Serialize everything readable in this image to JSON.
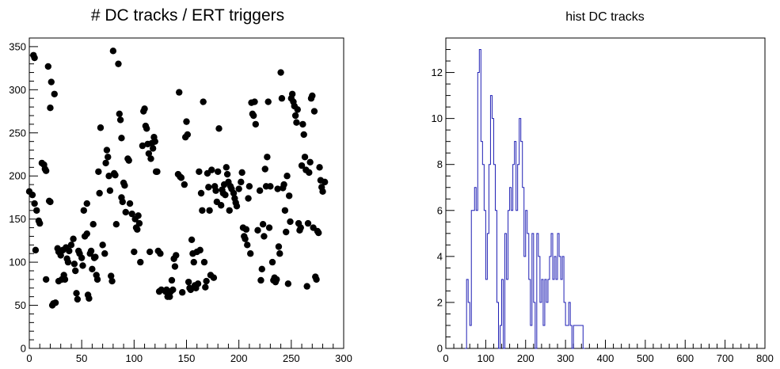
{
  "chart_data": [
    {
      "type": "scatter",
      "title": "# DC tracks / ERT triggers",
      "xlim": [
        0,
        300
      ],
      "ylim": [
        0,
        360
      ],
      "xticks": [
        "0",
        "50",
        "100",
        "150",
        "200",
        "250",
        "300"
      ],
      "yticks": [
        "0",
        "50",
        "100",
        "150",
        "200",
        "250",
        "300",
        "350"
      ],
      "marker_color": "#000000",
      "points": [
        [
          4,
          340
        ],
        [
          5,
          337
        ],
        [
          18,
          327
        ],
        [
          21,
          309
        ],
        [
          20,
          279
        ],
        [
          24,
          295
        ],
        [
          0,
          182
        ],
        [
          3,
          178
        ],
        [
          5,
          168
        ],
        [
          7,
          160
        ],
        [
          9,
          148
        ],
        [
          10,
          145
        ],
        [
          6,
          114
        ],
        [
          12,
          215
        ],
        [
          14,
          213
        ],
        [
          15,
          208
        ],
        [
          16,
          206
        ],
        [
          19,
          171
        ],
        [
          20,
          170
        ],
        [
          16,
          80
        ],
        [
          22,
          50
        ],
        [
          23,
          52
        ],
        [
          25,
          53
        ],
        [
          27,
          116
        ],
        [
          28,
          112
        ],
        [
          30,
          108
        ],
        [
          32,
          114
        ],
        [
          35,
          117
        ],
        [
          36,
          104
        ],
        [
          37,
          100
        ],
        [
          33,
          85
        ],
        [
          34,
          80
        ],
        [
          28,
          78
        ],
        [
          31,
          80
        ],
        [
          38,
          113
        ],
        [
          40,
          120
        ],
        [
          42,
          127
        ],
        [
          43,
          98
        ],
        [
          44,
          90
        ],
        [
          45,
          64
        ],
        [
          46,
          57
        ],
        [
          47,
          113
        ],
        [
          48,
          110
        ],
        [
          50,
          105
        ],
        [
          51,
          96
        ],
        [
          52,
          160
        ],
        [
          53,
          130
        ],
        [
          55,
          133
        ],
        [
          55,
          168
        ],
        [
          56,
          62
        ],
        [
          57,
          58
        ],
        [
          58,
          110
        ],
        [
          59,
          113
        ],
        [
          60,
          92
        ],
        [
          61,
          144
        ],
        [
          62,
          105
        ],
        [
          63,
          106
        ],
        [
          64,
          85
        ],
        [
          65,
          80
        ],
        [
          66,
          205
        ],
        [
          67,
          180
        ],
        [
          68,
          256
        ],
        [
          70,
          120
        ],
        [
          72,
          110
        ],
        [
          73,
          215
        ],
        [
          74,
          230
        ],
        [
          75,
          222
        ],
        [
          76,
          200
        ],
        [
          77,
          183
        ],
        [
          78,
          84
        ],
        [
          79,
          78
        ],
        [
          80,
          345
        ],
        [
          81,
          203
        ],
        [
          82,
          201
        ],
        [
          83,
          144
        ],
        [
          85,
          330
        ],
        [
          86,
          272
        ],
        [
          87,
          265
        ],
        [
          88,
          244
        ],
        [
          88,
          175
        ],
        [
          89,
          170
        ],
        [
          90,
          192
        ],
        [
          91,
          189
        ],
        [
          92,
          158
        ],
        [
          94,
          220
        ],
        [
          95,
          218
        ],
        [
          96,
          168
        ],
        [
          98,
          156
        ],
        [
          100,
          112
        ],
        [
          101,
          150
        ],
        [
          102,
          140
        ],
        [
          103,
          138
        ],
        [
          104,
          154
        ],
        [
          105,
          145
        ],
        [
          106,
          100
        ],
        [
          108,
          235
        ],
        [
          109,
          275
        ],
        [
          110,
          278
        ],
        [
          111,
          258
        ],
        [
          112,
          255
        ],
        [
          113,
          237
        ],
        [
          114,
          226
        ],
        [
          115,
          112
        ],
        [
          116,
          220
        ],
        [
          117,
          238
        ],
        [
          118,
          232
        ],
        [
          119,
          245
        ],
        [
          120,
          240
        ],
        [
          121,
          205
        ],
        [
          122,
          205
        ],
        [
          123,
          113
        ],
        [
          124,
          66
        ],
        [
          125,
          110
        ],
        [
          126,
          68
        ],
        [
          130,
          66
        ],
        [
          131,
          68
        ],
        [
          132,
          60
        ],
        [
          133,
          63
        ],
        [
          134,
          60
        ],
        [
          135,
          66
        ],
        [
          136,
          79
        ],
        [
          137,
          68
        ],
        [
          138,
          104
        ],
        [
          139,
          95
        ],
        [
          140,
          108
        ],
        [
          142,
          202
        ],
        [
          143,
          297
        ],
        [
          144,
          199
        ],
        [
          145,
          198
        ],
        [
          146,
          65
        ],
        [
          148,
          190
        ],
        [
          149,
          245
        ],
        [
          150,
          263
        ],
        [
          151,
          248
        ],
        [
          152,
          77
        ],
        [
          153,
          70
        ],
        [
          154,
          68
        ],
        [
          155,
          126
        ],
        [
          156,
          110
        ],
        [
          157,
          100
        ],
        [
          158,
          73
        ],
        [
          159,
          70
        ],
        [
          160,
          112
        ],
        [
          161,
          75
        ],
        [
          162,
          205
        ],
        [
          163,
          114
        ],
        [
          164,
          180
        ],
        [
          165,
          160
        ],
        [
          166,
          286
        ],
        [
          167,
          100
        ],
        [
          168,
          71
        ],
        [
          169,
          78
        ],
        [
          170,
          203
        ],
        [
          171,
          187
        ],
        [
          172,
          160
        ],
        [
          173,
          85
        ],
        [
          174,
          207
        ],
        [
          176,
          82
        ],
        [
          177,
          188
        ],
        [
          178,
          183
        ],
        [
          179,
          170
        ],
        [
          180,
          205
        ],
        [
          181,
          255
        ],
        [
          183,
          166
        ],
        [
          184,
          184
        ],
        [
          185,
          180
        ],
        [
          186,
          190
        ],
        [
          187,
          178
        ],
        [
          188,
          210
        ],
        [
          189,
          202
        ],
        [
          190,
          193
        ],
        [
          191,
          160
        ],
        [
          192,
          188
        ],
        [
          193,
          185
        ],
        [
          195,
          180
        ],
        [
          196,
          174
        ],
        [
          197,
          169
        ],
        [
          198,
          165
        ],
        [
          200,
          185
        ],
        [
          202,
          193
        ],
        [
          203,
          204
        ],
        [
          204,
          140
        ],
        [
          205,
          130
        ],
        [
          206,
          127
        ],
        [
          207,
          138
        ],
        [
          208,
          120
        ],
        [
          209,
          174
        ],
        [
          210,
          188
        ],
        [
          211,
          110
        ],
        [
          212,
          285
        ],
        [
          213,
          272
        ],
        [
          214,
          270
        ],
        [
          215,
          286
        ],
        [
          216,
          260
        ],
        [
          218,
          137
        ],
        [
          220,
          183
        ],
        [
          221,
          79
        ],
        [
          222,
          92
        ],
        [
          223,
          144
        ],
        [
          224,
          130
        ],
        [
          225,
          208
        ],
        [
          226,
          188
        ],
        [
          227,
          222
        ],
        [
          228,
          286
        ],
        [
          229,
          140
        ],
        [
          230,
          188
        ],
        [
          232,
          100
        ],
        [
          233,
          79
        ],
        [
          234,
          82
        ],
        [
          235,
          77
        ],
        [
          236,
          80
        ],
        [
          237,
          185
        ],
        [
          238,
          118
        ],
        [
          239,
          110
        ],
        [
          240,
          320
        ],
        [
          241,
          290
        ],
        [
          242,
          186
        ],
        [
          243,
          190
        ],
        [
          244,
          160
        ],
        [
          245,
          135
        ],
        [
          246,
          200
        ],
        [
          247,
          75
        ],
        [
          248,
          177
        ],
        [
          249,
          147
        ],
        [
          250,
          290
        ],
        [
          251,
          295
        ],
        [
          252,
          286
        ],
        [
          253,
          281
        ],
        [
          254,
          270
        ],
        [
          255,
          262
        ],
        [
          256,
          277
        ],
        [
          257,
          145
        ],
        [
          258,
          137
        ],
        [
          259,
          140
        ],
        [
          260,
          212
        ],
        [
          261,
          260
        ],
        [
          262,
          248
        ],
        [
          263,
          222
        ],
        [
          264,
          207
        ],
        [
          265,
          72
        ],
        [
          266,
          145
        ],
        [
          267,
          204
        ],
        [
          268,
          216
        ],
        [
          269,
          290
        ],
        [
          270,
          293
        ],
        [
          271,
          140
        ],
        [
          272,
          275
        ],
        [
          273,
          83
        ],
        [
          274,
          80
        ],
        [
          275,
          136
        ],
        [
          276,
          134
        ],
        [
          277,
          210
        ],
        [
          278,
          195
        ],
        [
          279,
          187
        ],
        [
          280,
          182
        ],
        [
          282,
          193
        ]
      ]
    },
    {
      "type": "histogram",
      "title": "hist DC tracks",
      "xlim": [
        0,
        800
      ],
      "ylim": [
        0,
        13.5
      ],
      "xticks": [
        "0",
        "100",
        "200",
        "300",
        "400",
        "500",
        "600",
        "700",
        "800"
      ],
      "yticks": [
        "0",
        "2",
        "4",
        "6",
        "8",
        "10",
        "12"
      ],
      "line_color": "#1f1fb4",
      "bin_width": 4,
      "bins": [
        [
          48,
          0
        ],
        [
          52,
          3
        ],
        [
          56,
          2
        ],
        [
          60,
          1
        ],
        [
          64,
          6
        ],
        [
          68,
          6
        ],
        [
          72,
          7
        ],
        [
          76,
          6
        ],
        [
          80,
          12
        ],
        [
          84,
          13
        ],
        [
          88,
          9
        ],
        [
          92,
          8
        ],
        [
          96,
          6
        ],
        [
          100,
          3
        ],
        [
          104,
          5
        ],
        [
          108,
          8
        ],
        [
          112,
          11
        ],
        [
          116,
          10
        ],
        [
          120,
          8
        ],
        [
          124,
          6
        ],
        [
          128,
          2
        ],
        [
          132,
          0
        ],
        [
          136,
          1
        ],
        [
          140,
          3
        ],
        [
          144,
          0
        ],
        [
          148,
          5
        ],
        [
          152,
          3
        ],
        [
          156,
          6
        ],
        [
          160,
          7
        ],
        [
          164,
          6
        ],
        [
          168,
          8
        ],
        [
          172,
          9
        ],
        [
          176,
          6
        ],
        [
          180,
          8
        ],
        [
          184,
          10
        ],
        [
          188,
          9
        ],
        [
          192,
          7
        ],
        [
          196,
          4
        ],
        [
          200,
          6
        ],
        [
          204,
          5
        ],
        [
          208,
          3
        ],
        [
          212,
          1
        ],
        [
          216,
          5
        ],
        [
          220,
          2
        ],
        [
          224,
          0
        ],
        [
          228,
          5
        ],
        [
          232,
          4
        ],
        [
          236,
          2
        ],
        [
          240,
          3
        ],
        [
          244,
          1
        ],
        [
          248,
          3
        ],
        [
          252,
          2
        ],
        [
          256,
          3
        ],
        [
          260,
          4
        ],
        [
          264,
          5
        ],
        [
          268,
          3
        ],
        [
          272,
          4
        ],
        [
          276,
          3
        ],
        [
          280,
          5
        ],
        [
          284,
          4
        ],
        [
          288,
          3
        ],
        [
          292,
          4
        ],
        [
          296,
          2
        ],
        [
          300,
          1
        ],
        [
          304,
          1
        ],
        [
          308,
          2
        ],
        [
          312,
          1
        ],
        [
          316,
          0
        ],
        [
          320,
          1
        ],
        [
          324,
          1
        ],
        [
          328,
          1
        ],
        [
          332,
          1
        ],
        [
          336,
          1
        ],
        [
          340,
          1
        ],
        [
          344,
          0
        ]
      ]
    }
  ]
}
